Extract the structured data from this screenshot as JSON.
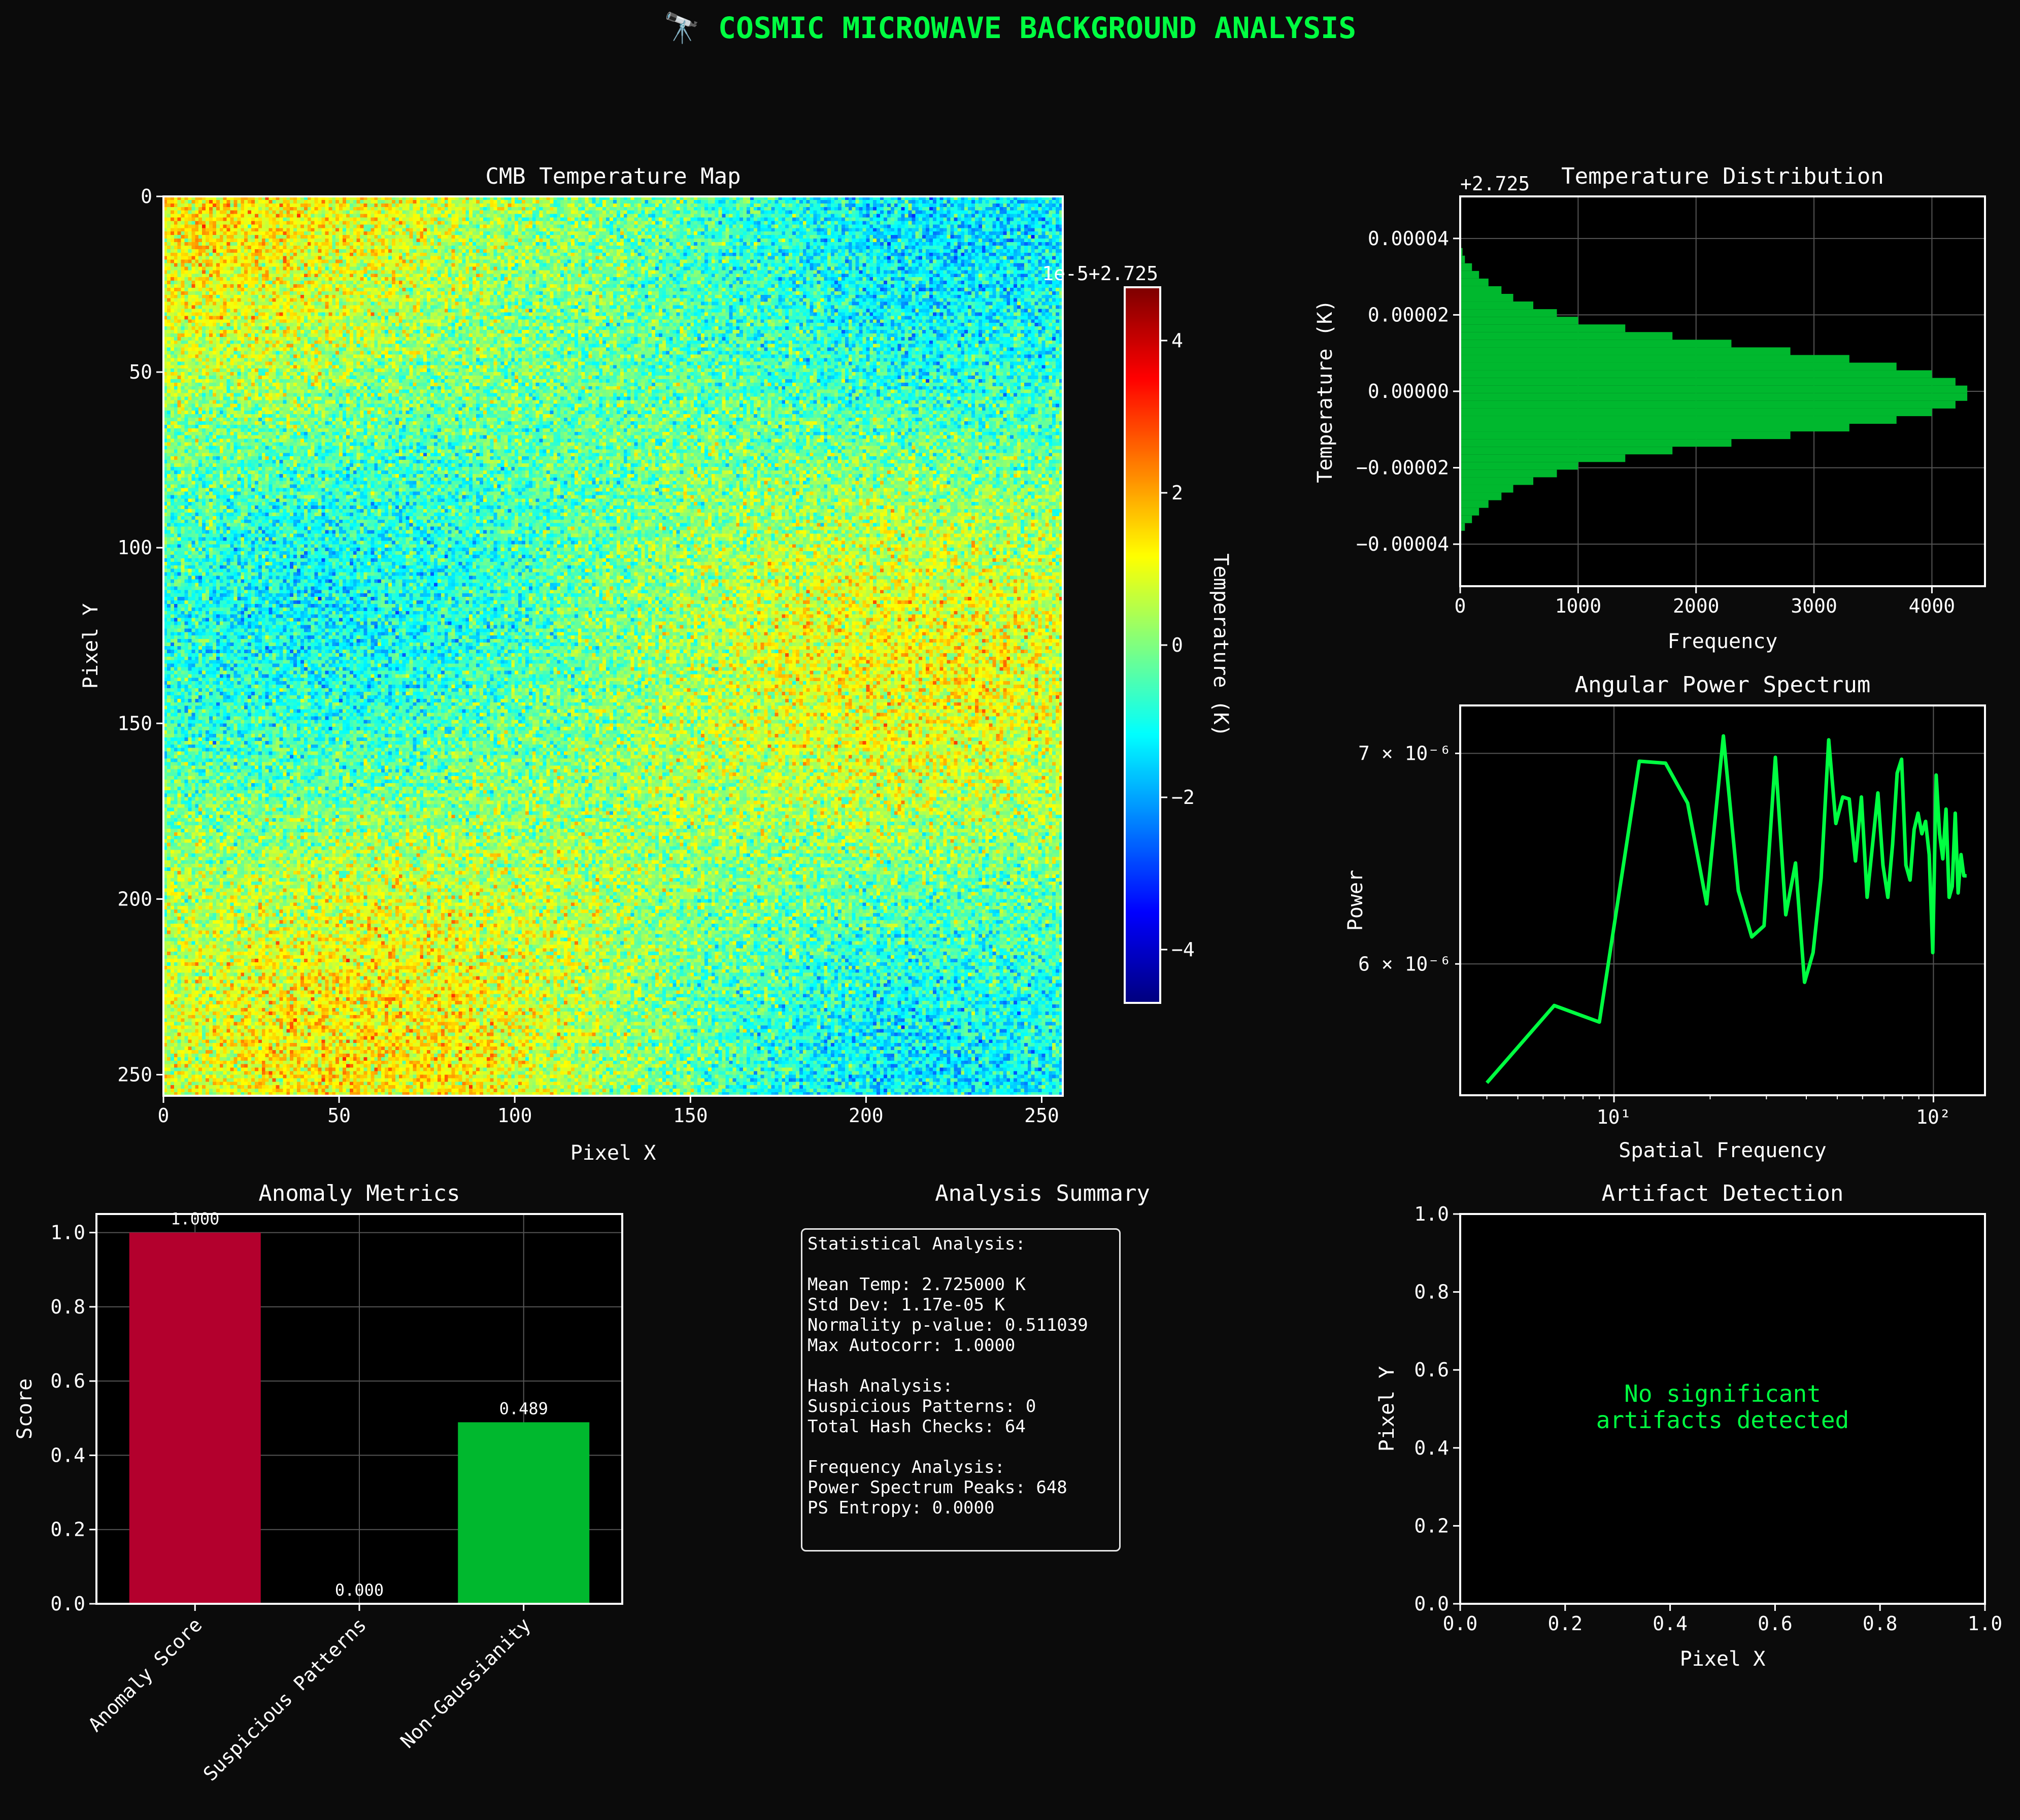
{
  "figure": {
    "title": "🔭 COSMIC MICROWAVE BACKGROUND ANALYSIS",
    "title_color": "#00ff41"
  },
  "colors": {
    "accent": "#00ff41",
    "bars_green": "#00b82e",
    "bar_red": "#b3002d",
    "background": "#0b0b0b",
    "axes": "#000000"
  },
  "chart_data": [
    {
      "id": "cmb_map",
      "type": "heatmap",
      "title": "CMB Temperature Map",
      "xlabel": "Pixel X",
      "ylabel": "Pixel Y",
      "xlim": [
        0,
        256
      ],
      "ylim": [
        256,
        0
      ],
      "x_ticks": [
        0,
        50,
        100,
        150,
        200,
        250
      ],
      "y_ticks": [
        0,
        50,
        100,
        150,
        200,
        250
      ],
      "colormap": "jet",
      "colorbar": {
        "label": "Temperature (K)",
        "offset_text": "1e-5+2.725",
        "range": [
          -4.7,
          4.7
        ],
        "ticks": [
          -4,
          -2,
          0,
          2,
          4
        ]
      },
      "features": {
        "warm_regions": [
          [
            20,
            10
          ],
          [
            215,
            135
          ],
          [
            60,
            235
          ]
        ],
        "cold_regions": [
          [
            225,
            20
          ],
          [
            45,
            115
          ],
          [
            215,
            245
          ]
        ]
      }
    },
    {
      "id": "temp_dist",
      "type": "bar",
      "orientation": "horizontal",
      "title": "Temperature Distribution",
      "xlabel": "Frequency",
      "ylabel": "Temperature (K)",
      "offset_text": "+2.725",
      "xlim": [
        0,
        4450
      ],
      "ylim": [
        -5.1e-05,
        5.1e-05
      ],
      "x_ticks": [
        0,
        1000,
        2000,
        3000,
        4000
      ],
      "y_ticks": [
        "−0.00004",
        "−0.00002",
        "0.00000",
        "0.00002",
        "0.00004"
      ],
      "bins_lower_edge": [
        -3.65e-05,
        -3.45e-05,
        -3.25e-05,
        -3.05e-05,
        -2.85e-05,
        -2.65e-05,
        -2.45e-05,
        -2.25e-05,
        -2.05e-05,
        -1.85e-05,
        -1.65e-05,
        -1.45e-05,
        -1.25e-05,
        -1.05e-05,
        -8.5e-06,
        -6.5e-06,
        -4.5e-06,
        -2.5e-06,
        -5e-07,
        1.5e-06,
        3.5e-06,
        5.5e-06,
        7.5e-06,
        9.5e-06,
        1.15e-05,
        1.35e-05,
        1.55e-05,
        1.75e-05,
        1.95e-05,
        2.15e-05,
        2.35e-05,
        2.55e-05,
        2.75e-05,
        2.95e-05,
        3.15e-05,
        3.35e-05,
        3.55e-05
      ],
      "bin_width": 2e-06,
      "counts": [
        40,
        100,
        160,
        240,
        350,
        450,
        620,
        820,
        1000,
        1400,
        1800,
        2300,
        2800,
        3300,
        3700,
        4000,
        4200,
        4300,
        4300,
        4200,
        4000,
        3700,
        3300,
        2800,
        2300,
        1800,
        1400,
        1000,
        820,
        620,
        450,
        350,
        240,
        160,
        100,
        40,
        20
      ]
    },
    {
      "id": "power_spectrum",
      "type": "line",
      "title": "Angular Power Spectrum",
      "xlabel": "Spatial Frequency",
      "ylabel": "Power",
      "x_scale": "log",
      "y_scale": "log",
      "xlim": [
        3.3,
        145
      ],
      "ylim": [
        5.45e-06,
        7.25e-06
      ],
      "x_tick_labels": [
        "10¹",
        "10²"
      ],
      "y_tick_labels": [
        "6 × 10⁻⁶",
        "7 × 10⁻⁶"
      ],
      "x": [
        4,
        6.5,
        9,
        12,
        14.5,
        17,
        19.5,
        22,
        24.5,
        27,
        29.5,
        32,
        34.5,
        37,
        39.5,
        42,
        44.5,
        47,
        49.5,
        52,
        54.5,
        57,
        59.5,
        62,
        64.5,
        67,
        69.5,
        72,
        74.5,
        77,
        79.5,
        82,
        84.5,
        87,
        89.5,
        92,
        94.5,
        97,
        99.5,
        102,
        104.5,
        107,
        109.5,
        112,
        114.5,
        117,
        119.5,
        122,
        124.5,
        127
      ],
      "y": [
        5.5e-06,
        5.82e-06,
        5.75e-06,
        6.96e-06,
        6.95e-06,
        6.75e-06,
        6.27e-06,
        7.09e-06,
        6.33e-06,
        6.12e-06,
        6.17e-06,
        6.98e-06,
        6.22e-06,
        6.46e-06,
        5.92e-06,
        6.05e-06,
        6.39e-06,
        7.07e-06,
        6.65e-06,
        6.78e-06,
        6.77e-06,
        6.47e-06,
        6.78e-06,
        6.3e-06,
        6.55e-06,
        6.8e-06,
        6.45e-06,
        6.3e-06,
        6.55e-06,
        6.9e-06,
        6.97e-06,
        6.45e-06,
        6.38e-06,
        6.62e-06,
        6.7e-06,
        6.6e-06,
        6.66e-06,
        6.5e-06,
        6.05e-06,
        6.89e-06,
        6.6e-06,
        6.48e-06,
        6.72e-06,
        6.3e-06,
        6.35e-06,
        6.7e-06,
        6.32e-06,
        6.5e-06,
        6.4e-06,
        6.4e-06
      ]
    },
    {
      "id": "anomaly_metrics",
      "type": "bar",
      "title": "Anomaly Metrics",
      "ylabel": "Score",
      "ylim": [
        0,
        1.05
      ],
      "y_ticks": [
        0.0,
        0.2,
        0.4,
        0.6,
        0.8,
        1.0
      ],
      "categories": [
        "Anomaly Score",
        "Suspicious Patterns",
        "Non-Gaussianity"
      ],
      "values": [
        1.0,
        0.0,
        0.489
      ],
      "value_labels": [
        "1.000",
        "0.000",
        "0.489"
      ],
      "bar_colors": [
        "#b3002d",
        "#00b82e",
        "#00b82e"
      ]
    },
    {
      "id": "artifacts",
      "type": "scatter",
      "title": "Artifact Detection",
      "xlabel": "Pixel X",
      "ylabel": "Pixel Y",
      "xlim": [
        0,
        1
      ],
      "ylim": [
        0,
        1
      ],
      "ticks": [
        0.0,
        0.2,
        0.4,
        0.6,
        0.8,
        1.0
      ],
      "message": "No significant\nartifacts detected",
      "points": []
    }
  ],
  "summary": {
    "title": "Analysis Summary",
    "text": "Statistical Analysis:\n\nMean Temp: 2.725000 K\nStd Dev: 1.17e-05 K\nNormality p-value: 0.511039\nMax Autocorr: 1.0000\n\nHash Analysis:\nSuspicious Patterns: 0\nTotal Hash Checks: 64\n\nFrequency Analysis:\nPower Spectrum Peaks: 648\nPS Entropy: 0.0000"
  }
}
